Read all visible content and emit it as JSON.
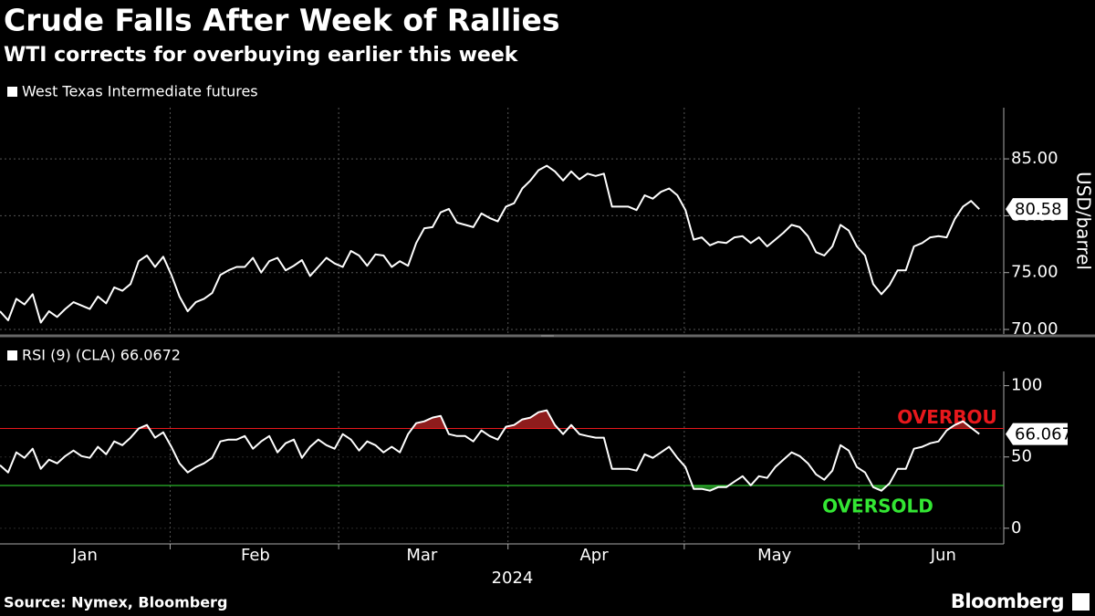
{
  "title": "Crude Falls After Week of Rallies",
  "subtitle": "WTI corrects for overbuying earlier this week",
  "source": "Source: Nymex, Bloomberg",
  "brand": "Bloomberg",
  "chart_data": [
    {
      "type": "line",
      "ylabel": "USD/barrel",
      "ylim": [
        69.6,
        89.5
      ],
      "yticks": [
        {
          "value": 70,
          "label": "70.00"
        },
        {
          "value": 75,
          "label": "75.00"
        },
        {
          "value": 80,
          "label": "80.00"
        },
        {
          "value": 85,
          "label": "85.00"
        }
      ],
      "grid": true,
      "series": [
        {
          "name": "West Texas Intermediate futures",
          "color": "#ffffff",
          "values": [
            71.6,
            70.8,
            72.7,
            72.2,
            73.1,
            70.6,
            71.6,
            71.1,
            71.8,
            72.4,
            72.1,
            71.8,
            72.9,
            72.3,
            73.7,
            73.4,
            74.0,
            76.0,
            76.5,
            75.5,
            76.4,
            74.8,
            72.9,
            71.6,
            72.4,
            72.7,
            73.2,
            74.8,
            75.2,
            75.5,
            75.5,
            76.3,
            75.0,
            76.0,
            76.3,
            75.2,
            75.6,
            76.1,
            74.7,
            75.5,
            76.3,
            75.8,
            75.5,
            76.9,
            76.5,
            75.6,
            76.6,
            76.5,
            75.5,
            76.0,
            75.6,
            77.6,
            78.9,
            79.0,
            80.3,
            80.6,
            79.4,
            79.2,
            79.0,
            80.2,
            79.8,
            79.5,
            80.8,
            81.1,
            82.4,
            83.1,
            84.0,
            84.4,
            83.9,
            83.1,
            83.9,
            83.2,
            83.7,
            83.5,
            83.7,
            80.8,
            80.8,
            80.8,
            80.5,
            81.8,
            81.5,
            82.1,
            82.4,
            81.8,
            80.5,
            77.9,
            78.1,
            77.4,
            77.7,
            77.6,
            78.1,
            78.2,
            77.6,
            78.1,
            77.3,
            77.9,
            78.5,
            79.2,
            79.0,
            78.2,
            76.8,
            76.5,
            77.3,
            79.2,
            78.7,
            77.3,
            76.5,
            74.0,
            73.1,
            73.9,
            75.2,
            75.2,
            77.3,
            77.6,
            78.1,
            78.2,
            78.1,
            79.7,
            80.8,
            81.3,
            80.58
          ]
        }
      ]
    },
    {
      "type": "line",
      "xlabel": "2024",
      "xlim": [
        0,
        123
      ],
      "xticks": [
        {
          "value": 10.4,
          "label": "Jan"
        },
        {
          "value": 31.3,
          "label": "Feb"
        },
        {
          "value": 51.7,
          "label": "Mar"
        },
        {
          "value": 72.8,
          "label": "Apr"
        },
        {
          "value": 94.9,
          "label": "May"
        },
        {
          "value": 115.6,
          "label": "Jun"
        }
      ],
      "ylim": [
        -11,
        110
      ],
      "yticks": [
        0,
        50,
        100
      ],
      "thresholds": [
        {
          "label": "OVERBOU",
          "value": 70,
          "color": "#e8181c",
          "fill": "#8e1c1c",
          "zone": "above"
        },
        {
          "label": "OVERSOLD",
          "value": 30,
          "color": "#33e633",
          "fill": "#1f7a1f",
          "zone": "below"
        }
      ],
      "series": [
        {
          "name": "RSI (9) (CLA) 66.0672",
          "color": "#ffffff",
          "values": [
            44.2,
            39.1,
            53.2,
            49.4,
            55.8,
            41.7,
            48.1,
            45.5,
            50.6,
            54.5,
            50.6,
            49.4,
            57.1,
            51.9,
            60.9,
            58.3,
            63.5,
            69.9,
            72.4,
            63.5,
            67.3,
            57.1,
            45.5,
            39.1,
            42.9,
            45.5,
            49.4,
            60.9,
            62.2,
            62.2,
            64.7,
            55.8,
            60.9,
            64.7,
            53.2,
            59.6,
            62.2,
            49.4,
            57.1,
            62.2,
            58.3,
            55.8,
            66.0,
            62.2,
            54.5,
            60.9,
            58.3,
            53.2,
            57.1,
            53.2,
            66.0,
            73.7,
            75.0,
            77.6,
            78.8,
            66.0,
            64.7,
            64.7,
            60.9,
            68.6,
            64.7,
            62.2,
            71.2,
            72.4,
            76.3,
            77.6,
            81.4,
            82.7,
            72.4,
            66.0,
            72.4,
            66.0,
            64.7,
            63.5,
            63.5,
            41.7,
            41.7,
            41.7,
            40.4,
            51.9,
            49.4,
            53.2,
            57.1,
            49.4,
            42.9,
            27.6,
            27.6,
            26.3,
            28.8,
            28.8,
            32.7,
            36.5,
            30.1,
            36.5,
            35.3,
            42.9,
            48.1,
            53.2,
            50.6,
            45.5,
            37.8,
            34.0,
            40.4,
            58.3,
            54.5,
            42.9,
            39.1,
            28.8,
            26.3,
            31.4,
            41.7,
            41.7,
            55.8,
            57.1,
            59.6,
            60.9,
            68.6,
            72.4,
            75.0,
            70.5,
            66.0672
          ]
        }
      ]
    }
  ]
}
